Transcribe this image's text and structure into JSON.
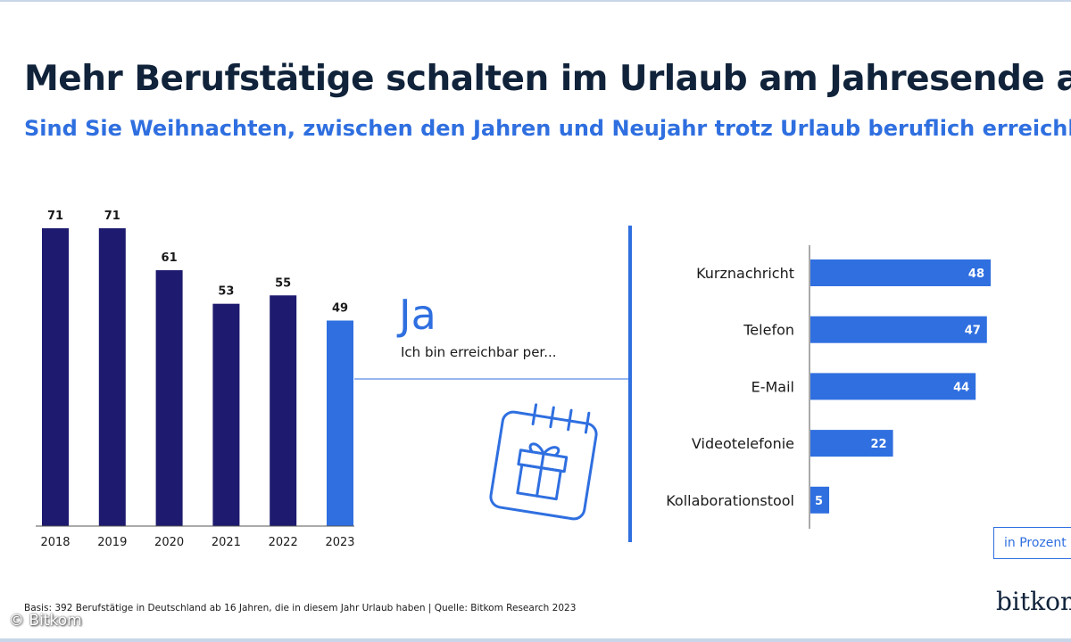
{
  "title": "Mehr Berufstätige schalten im Urlaub am Jahresende ab",
  "subtitle": "Sind Sie Weihnachten, zwischen den Jahren und Neujahr trotz Urlaub beruflich erreichbar?",
  "middle": {
    "answer": "Ja",
    "caption": "Ich bin erreichbar per..."
  },
  "icon": "calendar-gift-icon",
  "unit_label": "in Prozent",
  "footnote": "Basis: 392 Berufstätige in Deutschland ab 16 Jahren, die in diesem Jahr Urlaub haben | Quelle: Bitkom Research 2023",
  "brand": "bitkom",
  "copyright": "© Bitkom",
  "colors": {
    "dark_bar": "#1d1a6f",
    "accent": "#2f6fe0",
    "title": "#10233a"
  },
  "chart_data": [
    {
      "type": "bar",
      "orientation": "vertical",
      "title": "",
      "xlabel": "",
      "ylabel": "",
      "categories": [
        "2018",
        "2019",
        "2020",
        "2021",
        "2022",
        "2023"
      ],
      "values": [
        71,
        71,
        61,
        53,
        55,
        49
      ],
      "highlight": [
        "2023"
      ],
      "ylim": [
        0,
        71
      ],
      "grid": false,
      "unit": "in Prozent"
    },
    {
      "type": "bar",
      "orientation": "horizontal",
      "title": "Ich bin erreichbar per...",
      "categories": [
        "Kurznachricht",
        "Telefon",
        "E-Mail",
        "Videotelefonie",
        "Kollaborationstool"
      ],
      "values": [
        48,
        47,
        44,
        22,
        5
      ],
      "xlim": [
        0,
        48
      ],
      "grid": false,
      "unit": "in Prozent"
    }
  ]
}
